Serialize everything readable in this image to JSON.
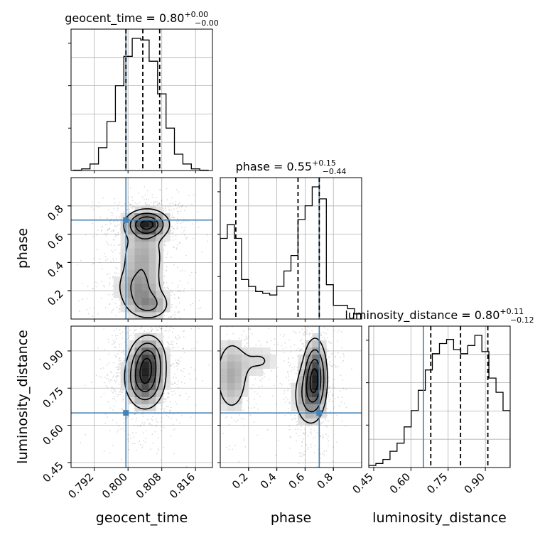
{
  "chart_data": {
    "type": "corner",
    "parameters": [
      "geocent_time",
      "phase",
      "luminosity_distance"
    ],
    "truth": {
      "geocent_time": 0.7995,
      "phase": 0.7,
      "luminosity_distance": 0.65
    },
    "accent_color": "#4682b4",
    "grid": true,
    "axes": {
      "geocent_time": {
        "range": [
          0.7865,
          0.82
        ],
        "ticks": [
          0.792,
          0.8,
          0.808,
          0.816
        ],
        "tick_labels": [
          "0.792",
          "0.800",
          "0.808",
          "0.816"
        ],
        "label": "geocent_time"
      },
      "phase": {
        "range": [
          0.0,
          1.0
        ],
        "ticks": [
          0.2,
          0.4,
          0.6,
          0.8
        ],
        "tick_labels": [
          "0.2",
          "0.4",
          "0.6",
          "0.8"
        ],
        "label": "phase"
      },
      "luminosity_distance": {
        "range": [
          0.43,
          1.0
        ],
        "ticks": [
          0.45,
          0.6,
          0.75,
          0.9
        ],
        "tick_labels": [
          "0.45",
          "0.60",
          "0.75",
          "0.90"
        ],
        "label": "luminosity_distance"
      }
    },
    "diagonal": [
      {
        "param": "geocent_time",
        "title_main": "geocent_time = 0.80",
        "title_sup": "+0.00",
        "title_sub": "−0.00",
        "quantiles": [
          0.7995,
          0.8035,
          0.8075
        ],
        "bin_edges": [
          0.787,
          0.789,
          0.791,
          0.793,
          0.795,
          0.797,
          0.799,
          0.801,
          0.803,
          0.805,
          0.807,
          0.809,
          0.811,
          0.813,
          0.815,
          0.817,
          0.819
        ],
        "counts": [
          0.2,
          1,
          4,
          14,
          30,
          52,
          70,
          81,
          80,
          67,
          47,
          26,
          10,
          4,
          1,
          0.2
        ]
      },
      {
        "param": "phase",
        "title_main": "phase = 0.55",
        "title_sup": "+0.15",
        "title_sub": "−0.44",
        "quantiles": [
          0.11,
          0.55,
          0.7
        ],
        "bin_edges": [
          0.0,
          0.05,
          0.1,
          0.15,
          0.2,
          0.25,
          0.3,
          0.35,
          0.4,
          0.45,
          0.5,
          0.55,
          0.6,
          0.65,
          0.7,
          0.75,
          0.8,
          0.85,
          0.9,
          0.95,
          1.0
        ],
        "counts": [
          47,
          55,
          47,
          23,
          19,
          16,
          15,
          14,
          19,
          28,
          37,
          58,
          66,
          77,
          70,
          20,
          8,
          8,
          6,
          3
        ]
      },
      {
        "param": "luminosity_distance",
        "title_main": "luminosity_distance = 0.80",
        "title_sup": "+0.11",
        "title_sub": "−0.12",
        "quantiles": [
          0.68,
          0.8,
          0.91
        ],
        "bin_edges": [
          0.43,
          0.4585,
          0.487,
          0.5155,
          0.544,
          0.5725,
          0.601,
          0.6295,
          0.658,
          0.6865,
          0.715,
          0.7435,
          0.772,
          0.8005,
          0.829,
          0.8575,
          0.886,
          0.9145,
          0.943,
          0.9715,
          1.0
        ],
        "counts": [
          1,
          2,
          4,
          8,
          12,
          20,
          28,
          38,
          48,
          56,
          61,
          63,
          58,
          56,
          60,
          65,
          57,
          44,
          37,
          28
        ]
      }
    ],
    "pairs": [
      {
        "x": "geocent_time",
        "y": "phase",
        "density_blobs": [
          {
            "cx": 0.8045,
            "cy": 0.67,
            "sx": 0.0027,
            "sy": 0.055,
            "w": 1.0
          },
          {
            "cx": 0.8035,
            "cy": 0.45,
            "sx": 0.003,
            "sy": 0.12,
            "w": 0.35
          },
          {
            "cx": 0.8025,
            "cy": 0.22,
            "sx": 0.003,
            "sy": 0.09,
            "w": 0.4
          },
          {
            "cx": 0.805,
            "cy": 0.1,
            "sx": 0.0028,
            "sy": 0.06,
            "w": 0.4
          }
        ]
      },
      {
        "x": "geocent_time",
        "y": "luminosity_distance",
        "density_blobs": [
          {
            "cx": 0.804,
            "cy": 0.79,
            "sx": 0.0025,
            "sy": 0.065,
            "w": 1.0
          },
          {
            "cx": 0.8048,
            "cy": 0.88,
            "sx": 0.0022,
            "sy": 0.05,
            "w": 0.55
          }
        ]
      },
      {
        "x": "phase",
        "y": "luminosity_distance",
        "density_blobs": [
          {
            "cx": 0.67,
            "cy": 0.8,
            "sx": 0.045,
            "sy": 0.08,
            "w": 1.0
          },
          {
            "cx": 0.62,
            "cy": 0.72,
            "sx": 0.06,
            "sy": 0.07,
            "w": 0.45
          },
          {
            "cx": 0.08,
            "cy": 0.8,
            "sx": 0.07,
            "sy": 0.09,
            "w": 0.4
          },
          {
            "cx": 0.28,
            "cy": 0.86,
            "sx": 0.09,
            "sy": 0.04,
            "w": 0.18
          }
        ]
      }
    ]
  }
}
